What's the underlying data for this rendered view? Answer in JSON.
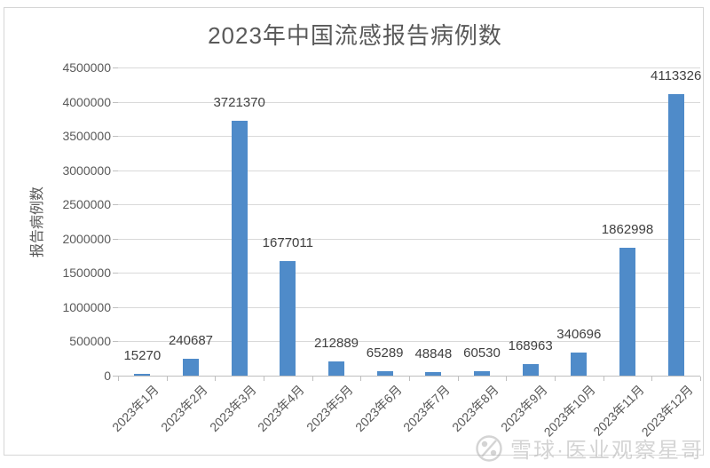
{
  "chart_data": {
    "type": "bar",
    "title": "2023年中国流感报告病例数",
    "xlabel": "",
    "ylabel": "报告病例数",
    "categories": [
      "2023年1月",
      "2023年2月",
      "2023年3月",
      "2023年4月",
      "2023年5月",
      "2023年6月",
      "2023年7月",
      "2023年8月",
      "2023年9月",
      "2023年10月",
      "2023年11月",
      "2023年12月"
    ],
    "values": [
      15270,
      240687,
      3721370,
      1677011,
      212889,
      65289,
      48848,
      60530,
      168963,
      340696,
      1862998,
      4113326
    ],
    "ylim": [
      0,
      4500000
    ],
    "yticks": [
      0,
      500000,
      1000000,
      1500000,
      2000000,
      2500000,
      3000000,
      3500000,
      4000000,
      4500000
    ],
    "grid": true,
    "legend": "none",
    "bar_color": "#4f8bc9",
    "gridline_color": "#d9d9d9",
    "axis_color": "#bfbfbf",
    "title_color": "#595959",
    "tick_label_color": "#595959",
    "data_label_color": "#404040"
  },
  "watermark": {
    "logo": "xueqiu-logo",
    "text": "雪球·医业观察星哥"
  }
}
